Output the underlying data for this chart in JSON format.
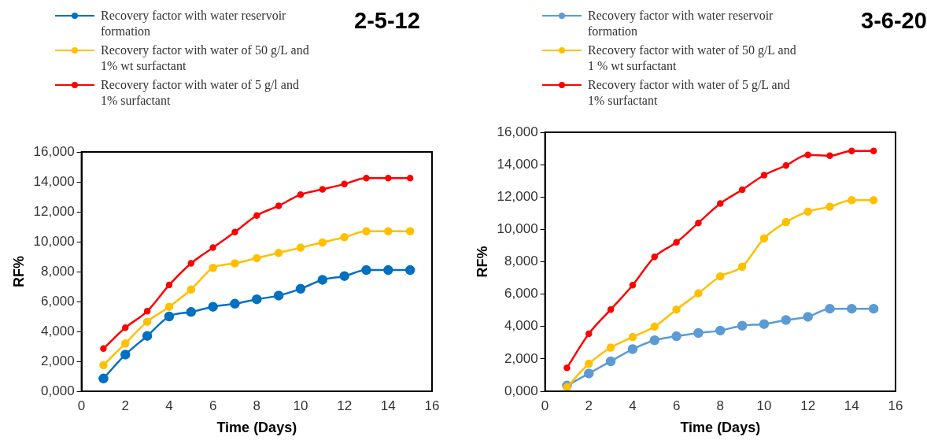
{
  "chart_data": [
    {
      "type": "line",
      "title": "2-5-12",
      "xlabel": "Time (Days)",
      "ylabel": "RF%",
      "x": [
        1,
        2,
        3,
        4,
        5,
        6,
        7,
        8,
        9,
        10,
        11,
        12,
        13,
        14,
        15
      ],
      "series": [
        {
          "name": "Recovery factor with water reservoir formation",
          "color": "#0070c0",
          "values": [
            0.85,
            2.45,
            3.7,
            5.0,
            5.3,
            5.65,
            5.85,
            6.15,
            6.4,
            6.85,
            7.45,
            7.7,
            8.1,
            8.1,
            8.1
          ]
        },
        {
          "name": "Recovery factor with water of 50 g/L and 1% wt surfactant",
          "color": "#ffc000",
          "values": [
            1.75,
            3.2,
            4.65,
            5.65,
            6.8,
            8.25,
            8.55,
            8.9,
            9.25,
            9.6,
            9.95,
            10.3,
            10.7,
            10.7,
            10.7
          ]
        },
        {
          "name": "Recovery factor with water of 5 g/l and 1% surfactant",
          "color": "#ff0000",
          "values": [
            2.85,
            4.25,
            5.35,
            7.1,
            8.55,
            9.6,
            10.65,
            11.75,
            12.4,
            13.15,
            13.5,
            13.85,
            14.25,
            14.25,
            14.25
          ]
        }
      ],
      "xlim": [
        0,
        16
      ],
      "xticks": [
        0,
        2,
        4,
        6,
        8,
        10,
        12,
        14,
        16
      ],
      "ylim": [
        0,
        16
      ],
      "yticks": [
        {
          "value": 0,
          "label": "0,000"
        },
        {
          "value": 2,
          "label": "2,000"
        },
        {
          "value": 4,
          "label": "4,000"
        },
        {
          "value": 6,
          "label": "6,000"
        },
        {
          "value": 8,
          "label": "8,000"
        },
        {
          "value": 10,
          "label": "10,000"
        },
        {
          "value": 12,
          "label": "12,000"
        },
        {
          "value": 14,
          "label": "14,000"
        },
        {
          "value": 16,
          "label": "16,000"
        }
      ],
      "grid": false,
      "legend": "top",
      "marker": "circle",
      "line_style": "solid"
    },
    {
      "type": "line",
      "title": "3-6-20",
      "xlabel": "Time (Days)",
      "ylabel": "RF%",
      "x": [
        1,
        2,
        3,
        4,
        5,
        6,
        7,
        8,
        9,
        10,
        11,
        12,
        13,
        14,
        15
      ],
      "series": [
        {
          "name": "Recovery factor with water reservoir formation",
          "color": "#5b9bd5",
          "values": [
            0.35,
            1.1,
            1.85,
            2.6,
            3.15,
            3.4,
            3.6,
            3.75,
            4.05,
            4.15,
            4.4,
            4.6,
            5.1,
            5.1,
            5.1
          ]
        },
        {
          "name": "Recovery factor with water of 50 g/L and 1 % wt surfactant",
          "color": "#ffc000",
          "values": [
            0.25,
            1.7,
            2.7,
            3.35,
            4.0,
            5.05,
            6.05,
            7.1,
            7.7,
            9.45,
            10.45,
            11.1,
            11.4,
            11.8,
            11.8
          ]
        },
        {
          "name": "Recovery factor with water of 5 g/L and 1% surfactant",
          "color": "#ff0000",
          "values": [
            1.45,
            3.55,
            5.05,
            6.55,
            8.3,
            9.2,
            10.4,
            11.6,
            12.45,
            13.35,
            13.95,
            14.6,
            14.55,
            14.85,
            14.85
          ]
        }
      ],
      "xlim": [
        0,
        16
      ],
      "xticks": [
        0,
        2,
        4,
        6,
        8,
        10,
        12,
        14,
        16
      ],
      "ylim": [
        0,
        16
      ],
      "yticks": [
        {
          "value": 0,
          "label": "0,000"
        },
        {
          "value": 2,
          "label": "2,000"
        },
        {
          "value": 4,
          "label": "4,000"
        },
        {
          "value": 6,
          "label": "6,000"
        },
        {
          "value": 8,
          "label": "8,000"
        },
        {
          "value": 10,
          "label": "10,000"
        },
        {
          "value": 12,
          "label": "12,000"
        },
        {
          "value": 14,
          "label": "14,000"
        },
        {
          "value": 16,
          "label": "16,000"
        }
      ],
      "grid": false,
      "legend": "top",
      "marker": "circle",
      "line_style": "solid"
    }
  ]
}
